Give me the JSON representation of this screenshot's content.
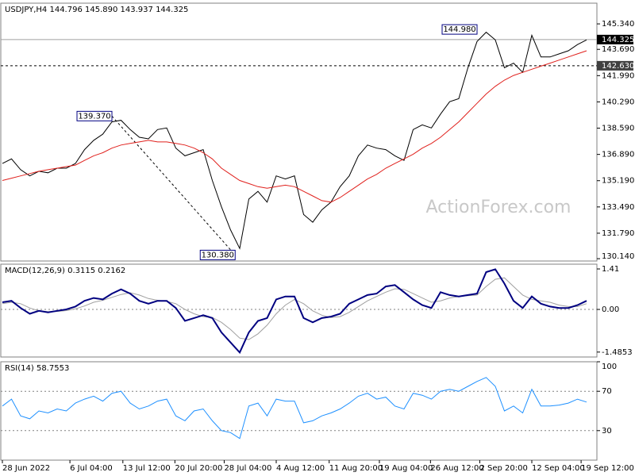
{
  "chart_data": [
    {
      "type": "line",
      "title": "USDJPY,H4  144.796 145.890 143.937 144.325",
      "watermark": "ActionForex.com",
      "x": [
        0,
        1,
        2,
        3,
        4,
        5,
        6,
        7,
        8,
        9,
        10,
        11,
        12,
        13,
        14,
        15,
        16,
        17,
        18,
        19,
        20,
        21,
        22,
        23,
        24,
        25,
        26,
        27,
        28,
        29,
        30,
        31,
        32,
        33,
        34,
        35,
        36,
        37,
        38,
        39,
        40,
        41,
        42,
        43,
        44,
        45,
        46,
        47,
        48,
        49,
        50,
        51,
        52,
        53,
        54,
        55,
        56,
        57,
        58,
        59,
        60,
        61,
        62,
        63,
        64
      ],
      "series": [
        {
          "color": "#000000",
          "values": [
            136.3,
            136.6,
            135.9,
            135.5,
            135.8,
            135.7,
            136.0,
            136.0,
            136.3,
            137.2,
            137.8,
            138.2,
            139.0,
            139.1,
            138.5,
            138.0,
            137.9,
            138.5,
            138.6,
            137.3,
            136.8,
            137.0,
            137.2,
            135.2,
            133.5,
            132.0,
            130.8,
            134.0,
            134.5,
            133.8,
            135.5,
            135.3,
            135.5,
            133.0,
            132.5,
            133.3,
            133.8,
            134.8,
            135.5,
            136.8,
            137.5,
            137.3,
            137.2,
            136.8,
            136.5,
            138.5,
            138.8,
            138.6,
            139.5,
            140.3,
            140.5,
            142.5,
            144.2,
            144.8,
            144.3,
            142.5,
            142.8,
            142.2,
            144.6,
            143.2,
            143.2,
            143.4,
            143.6,
            144.0,
            144.3
          ]
        },
        {
          "color": "#e0201c",
          "values": [
            135.2,
            135.35,
            135.5,
            135.65,
            135.8,
            135.9,
            136.0,
            136.1,
            136.2,
            136.5,
            136.8,
            137.0,
            137.3,
            137.5,
            137.6,
            137.7,
            137.8,
            137.7,
            137.7,
            137.6,
            137.5,
            137.3,
            137.0,
            136.6,
            136.0,
            135.6,
            135.2,
            135.0,
            134.8,
            134.7,
            134.8,
            134.9,
            134.8,
            134.5,
            134.2,
            133.9,
            133.8,
            134.1,
            134.5,
            134.9,
            135.3,
            135.6,
            136.0,
            136.3,
            136.6,
            136.9,
            137.3,
            137.6,
            138.0,
            138.5,
            139.0,
            139.6,
            140.2,
            140.8,
            141.3,
            141.7,
            142.0,
            142.2,
            142.4,
            142.6,
            142.8,
            143.0,
            143.2,
            143.4,
            143.6
          ]
        }
      ],
      "xlim": [
        0,
        65
      ],
      "ylim": [
        129.99,
        146.68
      ],
      "yticks": [
        {
          "value": 145.34,
          "label": "145.340"
        },
        {
          "value": 143.69,
          "label": "143.690"
        },
        {
          "value": 141.99,
          "label": "141.990"
        },
        {
          "value": 140.29,
          "label": "140.290"
        },
        {
          "value": 138.59,
          "label": "138.590"
        },
        {
          "value": 136.89,
          "label": "136.890"
        },
        {
          "value": 135.19,
          "label": "135.190"
        },
        {
          "value": 133.49,
          "label": "133.490"
        },
        {
          "value": 131.79,
          "label": "131.790"
        },
        {
          "value": 130.14,
          "label": "130.140"
        }
      ],
      "levels": [
        {
          "value": 144.325,
          "label": "144.325",
          "style": "solid"
        },
        {
          "value": 142.63,
          "label": "142.630",
          "style": "dashed"
        }
      ],
      "annotations": [
        {
          "x": 12,
          "value": 139.37,
          "label": "139.370"
        },
        {
          "x": 25.5,
          "value": 130.38,
          "label": "130.380"
        },
        {
          "x": 52,
          "value": 144.98,
          "label": "144.980"
        }
      ]
    },
    {
      "type": "line",
      "title": "MACD(12,26,9) 0.3115 0.2162",
      "x": [
        0,
        1,
        2,
        3,
        4,
        5,
        6,
        7,
        8,
        9,
        10,
        11,
        12,
        13,
        14,
        15,
        16,
        17,
        18,
        19,
        20,
        21,
        22,
        23,
        24,
        25,
        26,
        27,
        28,
        29,
        30,
        31,
        32,
        33,
        34,
        35,
        36,
        37,
        38,
        39,
        40,
        41,
        42,
        43,
        44,
        45,
        46,
        47,
        48,
        49,
        50,
        51,
        52,
        53,
        54,
        55,
        56,
        57,
        58,
        59,
        60,
        61,
        62,
        63,
        64
      ],
      "series": [
        {
          "color": "#a0a0a0",
          "values": [
            0.2,
            0.25,
            0.2,
            0.05,
            -0.05,
            -0.08,
            -0.07,
            -0.04,
            0.02,
            0.12,
            0.25,
            0.32,
            0.42,
            0.52,
            0.58,
            0.5,
            0.38,
            0.32,
            0.28,
            0.2,
            0.0,
            -0.15,
            -0.25,
            -0.28,
            -0.45,
            -0.7,
            -1.0,
            -1.05,
            -0.85,
            -0.55,
            -0.15,
            0.15,
            0.35,
            0.2,
            -0.05,
            -0.2,
            -0.28,
            -0.25,
            -0.1,
            0.1,
            0.3,
            0.45,
            0.6,
            0.72,
            0.7,
            0.55,
            0.4,
            0.25,
            0.3,
            0.4,
            0.45,
            0.48,
            0.5,
            0.8,
            1.05,
            1.1,
            0.8,
            0.5,
            0.35,
            0.3,
            0.25,
            0.15,
            0.1,
            0.1,
            0.2
          ]
        },
        {
          "color": "#000080",
          "values": [
            0.25,
            0.3,
            0.05,
            -0.15,
            -0.05,
            -0.1,
            -0.05,
            0.0,
            0.1,
            0.3,
            0.4,
            0.35,
            0.55,
            0.7,
            0.55,
            0.3,
            0.2,
            0.3,
            0.3,
            0.05,
            -0.4,
            -0.3,
            -0.2,
            -0.3,
            -0.8,
            -1.15,
            -1.5,
            -0.8,
            -0.4,
            -0.3,
            0.35,
            0.45,
            0.45,
            -0.3,
            -0.45,
            -0.3,
            -0.25,
            -0.15,
            0.2,
            0.35,
            0.5,
            0.55,
            0.8,
            0.85,
            0.6,
            0.35,
            0.15,
            0.05,
            0.6,
            0.5,
            0.45,
            0.5,
            0.55,
            1.3,
            1.4,
            0.9,
            0.3,
            0.05,
            0.45,
            0.2,
            0.1,
            0.05,
            0.05,
            0.15,
            0.3
          ]
        }
      ],
      "xlim": [
        0,
        65
      ],
      "ylim": [
        -1.657,
        1.576
      ],
      "yticks": [
        1.41,
        {
          "value": 0,
          "label": "0.00"
        },
        -1.4853
      ],
      "zero_line": true
    },
    {
      "type": "line",
      "title": "RSI(14) 58.7553",
      "x": [
        0,
        1,
        2,
        3,
        4,
        5,
        6,
        7,
        8,
        9,
        10,
        11,
        12,
        13,
        14,
        15,
        16,
        17,
        18,
        19,
        20,
        21,
        22,
        23,
        24,
        25,
        26,
        27,
        28,
        29,
        30,
        31,
        32,
        33,
        34,
        35,
        36,
        37,
        38,
        39,
        40,
        41,
        42,
        43,
        44,
        45,
        46,
        47,
        48,
        49,
        50,
        51,
        52,
        53,
        54,
        55,
        56,
        57,
        58,
        59,
        60,
        61,
        62,
        63,
        64
      ],
      "series": [
        {
          "color": "#1e90ff",
          "values": [
            55,
            62,
            45,
            42,
            50,
            48,
            52,
            50,
            58,
            62,
            65,
            60,
            68,
            70,
            58,
            52,
            55,
            60,
            62,
            45,
            40,
            50,
            52,
            40,
            30,
            28,
            22,
            55,
            58,
            45,
            62,
            60,
            60,
            38,
            40,
            45,
            48,
            52,
            58,
            65,
            68,
            62,
            64,
            55,
            52,
            68,
            66,
            62,
            70,
            72,
            70,
            75,
            80,
            84,
            75,
            50,
            55,
            48,
            72,
            55,
            55,
            56,
            58,
            62,
            59
          ]
        }
      ],
      "xlim": [
        0,
        65
      ],
      "ylim": [
        0,
        100
      ],
      "yticks": [
        100,
        70,
        30
      ],
      "grid": true,
      "xticks": [
        {
          "value": 0,
          "label": "28 Jun 2022"
        },
        {
          "value": 7.4,
          "label": "6 Jul 04:00"
        },
        {
          "value": 13.2,
          "label": "13 Jul 12:00"
        },
        {
          "value": 18.9,
          "label": "20 Jul 20:00"
        },
        {
          "value": 24.3,
          "label": "28 Jul 04:00"
        },
        {
          "value": 30,
          "label": "4 Aug 12:00"
        },
        {
          "value": 35.8,
          "label": "11 Aug 20:00"
        },
        {
          "value": 41.3,
          "label": "19 Aug 04:00"
        },
        {
          "value": 46.9,
          "label": "26 Aug 12:00"
        },
        {
          "value": 52.3,
          "label": "2 Sep 20:00"
        },
        {
          "value": 58,
          "label": "12 Sep 04:00"
        },
        {
          "value": 63.4,
          "label": "19 Sep 12:00"
        }
      ]
    }
  ]
}
